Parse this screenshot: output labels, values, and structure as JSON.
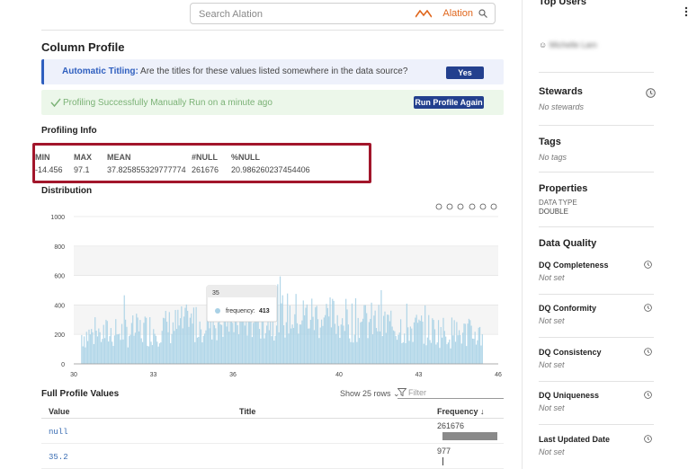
{
  "search": {
    "placeholder": "Search Alation",
    "brand": "Alation"
  },
  "column_profile": {
    "title": "Column Profile",
    "info_banner": {
      "label": "Automatic Titling:",
      "text": " Are the titles for these values listed somewhere in the data source?",
      "button": "Yes"
    },
    "success_banner": {
      "text": "Profiling Successfully Manually Run on a minute ago",
      "button": "Run Profile Again"
    }
  },
  "profiling_info": {
    "title": "Profiling Info",
    "stats": [
      {
        "label": "MIN",
        "value": "-14.456"
      },
      {
        "label": "MAX",
        "value": "97.1"
      },
      {
        "label": "MEAN",
        "value": "37.825855329777774"
      },
      {
        "label": "#NULL",
        "value": "261676"
      },
      {
        "label": "%NULL",
        "value": "20.986260237454406"
      }
    ]
  },
  "distribution": {
    "title": "Distribution"
  },
  "chart_data": {
    "type": "bar",
    "xlim": [
      30,
      46
    ],
    "ylim": [
      0,
      1000
    ],
    "xticks": [
      "30",
      "33",
      "36",
      "40",
      "43",
      "46"
    ],
    "yticks": [
      "0",
      "200",
      "400",
      "600",
      "800",
      "1000"
    ],
    "grid": true,
    "color": "#a9d1e6",
    "tooltip": {
      "x": "35",
      "series": "frequency",
      "value": 413
    },
    "toolbar_icons": [
      "zoom-in-icon",
      "zoom-out-icon",
      "magnify-icon",
      "pan-icon",
      "home-icon",
      "menu-icon"
    ]
  },
  "full_profile": {
    "title": "Full Profile Values",
    "show_rows": "Show 25 rows",
    "filter_placeholder": "Filter",
    "columns": [
      "Value",
      "Title",
      "Frequency ↓"
    ],
    "rows": [
      {
        "value": "null",
        "frequency": "261676",
        "fraction": 1.0
      },
      {
        "value": "35.2",
        "frequency": "977",
        "fraction": 0.004
      }
    ]
  },
  "sidebar": {
    "top_users_title": "Top Users",
    "top_user_name": "Michelle Lam",
    "stewards": {
      "title": "Stewards",
      "value": "No stewards"
    },
    "tags": {
      "title": "Tags",
      "value": "No tags"
    },
    "properties": {
      "title": "Properties",
      "key": "DATA TYPE",
      "value": "DOUBLE"
    },
    "data_quality": {
      "title": "Data Quality",
      "items": [
        {
          "title": "DQ Completeness",
          "value": "Not set"
        },
        {
          "title": "DQ Conformity",
          "value": "Not set"
        },
        {
          "title": "DQ Consistency",
          "value": "Not set"
        },
        {
          "title": "DQ Uniqueness",
          "value": "Not set"
        },
        {
          "title": "Last Updated Date",
          "value": "Not set"
        }
      ]
    }
  }
}
